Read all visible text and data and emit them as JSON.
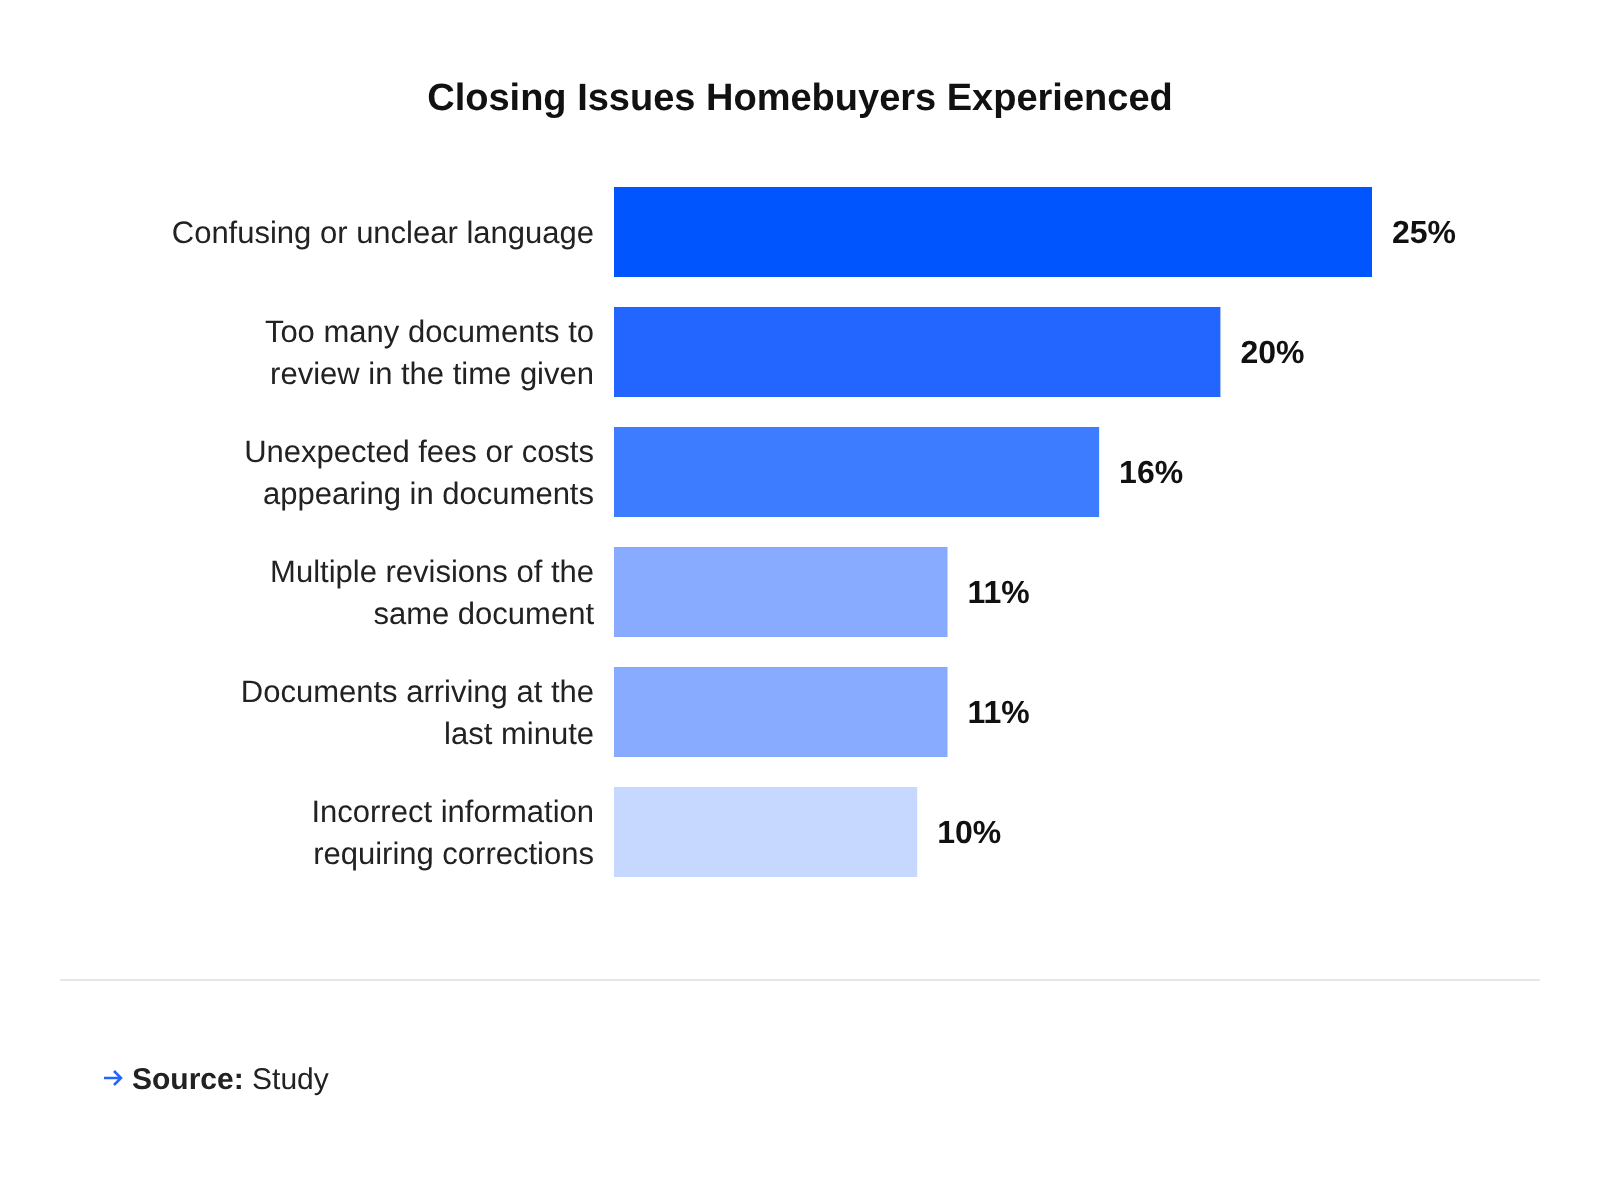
{
  "chart_data": {
    "type": "bar",
    "orientation": "horizontal",
    "title": "Closing Issues Homebuyers Experienced",
    "categories": [
      "Confusing or unclear language",
      "Too many documents to review in the time given",
      "Unexpected fees or costs appearing in documents",
      "Multiple revisions of the same document",
      "Documents arriving at the last minute",
      "Incorrect information requiring corrections"
    ],
    "values": [
      25,
      20,
      16,
      11,
      11,
      10
    ],
    "colors": [
      "#0055ff",
      "#2266ff",
      "#3d7cff",
      "#88abff",
      "#88abff",
      "#c6d8ff"
    ],
    "value_labels": [
      "25%",
      "20%",
      "16%",
      "11%",
      "11%",
      "10%"
    ],
    "annotations": [
      "Source: Study"
    ]
  }
}
